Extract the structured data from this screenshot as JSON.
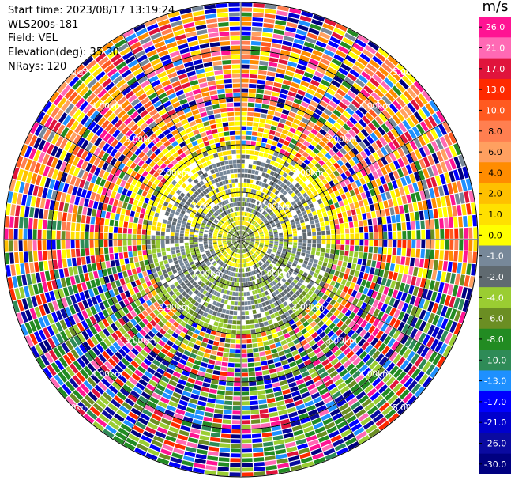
{
  "info": {
    "start_time": "Start time: 2023/08/17 13:19:24",
    "site": "WLS200s-181",
    "field": "Field: VEL",
    "elevation": "Elevation(deg): 35.30",
    "nrays": "NRays: 120"
  },
  "colorbar": {
    "unit": "m/s",
    "tick_labels": [
      "26.0",
      "21.0",
      "17.0",
      "13.0",
      "10.0",
      "8.0",
      "6.0",
      "4.0",
      "2.0",
      "1.0",
      "0.0",
      "-1.0",
      "-2.0",
      "-4.0",
      "-6.0",
      "-8.0",
      "-10.0",
      "-13.0",
      "-17.0",
      "-21.0",
      "-26.0",
      "-30.0"
    ],
    "colors": [
      "#ff1493",
      "#ff69b4",
      "#e0143c",
      "#ff2a00",
      "#ff5a20",
      "#ff7f50",
      "#ffa060",
      "#ff8c00",
      "#ffc000",
      "#ffe000",
      "#ffff00",
      "#778899",
      "#606a70",
      "#9acd32",
      "#6b8e23",
      "#228b22",
      "#2e8b57",
      "#1e90ff",
      "#0000ff",
      "#0000cd",
      "#0a0aa0",
      "#000080"
    ]
  },
  "chart_data": {
    "type": "heatmap",
    "projection": "polar-ppi",
    "title": "",
    "field": "VEL",
    "units": "m/s",
    "nrays": 120,
    "range_rings_km": [
      1.0,
      2.0,
      3.0,
      4.0,
      5.0
    ],
    "range_ring_labels": [
      "1.00km",
      "2.00km",
      "3.00km",
      "4.00km",
      "5.00km"
    ],
    "max_range_km": 5.0,
    "vmin": -30.0,
    "vmax": 30.0,
    "colorbar_ticks": [
      26.0,
      21.0,
      17.0,
      13.0,
      10.0,
      8.0,
      6.0,
      4.0,
      2.0,
      1.0,
      0.0,
      -1.0,
      -2.0,
      -4.0,
      -6.0,
      -8.0,
      -10.0,
      -13.0,
      -17.0,
      -21.0,
      -26.0,
      -30.0
    ],
    "spokes_deg": [
      0,
      30,
      60,
      90,
      120,
      150,
      180,
      210,
      240,
      270,
      300,
      330
    ],
    "grid": true,
    "legend": "right colorbar"
  }
}
